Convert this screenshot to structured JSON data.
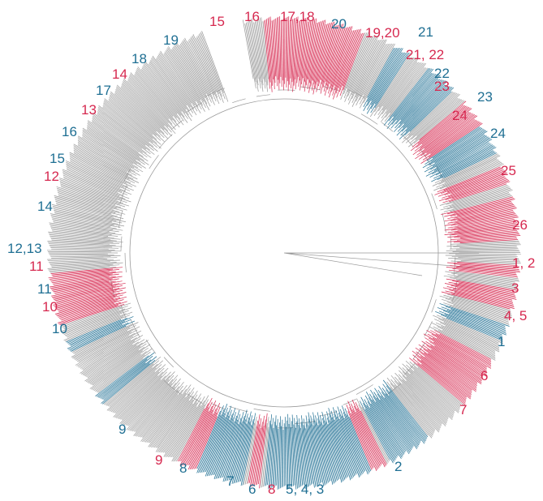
{
  "colors": {
    "background": "#ffffff",
    "tree_gray": "#9a9a9a",
    "clade_red": "#d6284f",
    "clade_blue": "#1f6f93"
  },
  "labels_red": [
    "15",
    "16",
    "17,18",
    "19,20",
    "21, 22",
    "23",
    "24",
    "25",
    "26",
    "1, 2",
    "3",
    "4, 5",
    "6",
    "7",
    "8",
    "9",
    "10",
    "11",
    "12",
    "13",
    "14"
  ],
  "labels_blue": [
    "19",
    "20",
    "21",
    "22",
    "23",
    "24",
    "18",
    "17",
    "16",
    "15",
    "14",
    "12,13",
    "11",
    "10",
    "9",
    "8",
    "7",
    "6",
    "5, 4, 3",
    "2",
    "1"
  ]
}
